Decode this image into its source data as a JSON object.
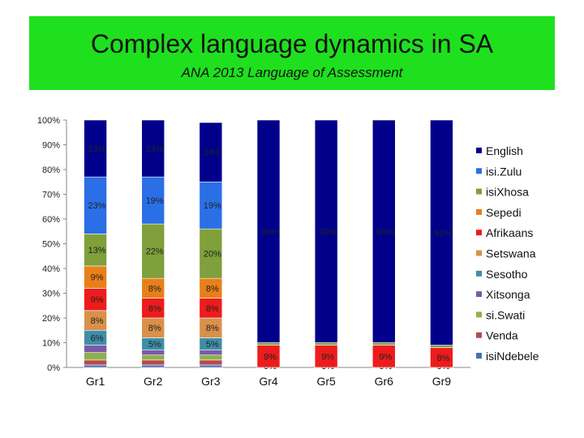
{
  "header": {
    "title": "Complex language dynamics in SA",
    "subtitle": "ANA 2013 Language of Assessment"
  },
  "chart_data": {
    "type": "bar",
    "stacked": true,
    "title": "Complex language dynamics in SA",
    "subtitle": "ANA 2013 Language of Assessment",
    "xlabel": "",
    "ylabel": "",
    "ylim": [
      0,
      100
    ],
    "yticks": [
      "0%",
      "10%",
      "20%",
      "30%",
      "40%",
      "50%",
      "60%",
      "70%",
      "80%",
      "90%",
      "100%"
    ],
    "categories": [
      "Gr1",
      "Gr2",
      "Gr3",
      "Gr4",
      "Gr5",
      "Gr6",
      "Gr9"
    ],
    "legend_position": "right",
    "series": [
      {
        "name": "isiNdebele",
        "color": "#4a6fb5",
        "values": [
          1,
          1,
          1,
          0,
          0,
          0,
          0
        ],
        "labels": [
          "",
          "",
          "",
          "0%",
          "0%",
          "0%",
          "0%"
        ]
      },
      {
        "name": "Venda",
        "color": "#b84a4a",
        "values": [
          2,
          2,
          2,
          0,
          0,
          0,
          0
        ],
        "labels": [
          "",
          "",
          "",
          "",
          "",
          "",
          ""
        ]
      },
      {
        "name": "si.Swati",
        "color": "#8fb04a",
        "values": [
          3,
          2,
          2,
          0,
          0,
          0,
          0
        ],
        "labels": [
          "",
          "",
          "",
          "",
          "",
          "",
          ""
        ]
      },
      {
        "name": "Xitsonga",
        "color": "#7a5aa8",
        "values": [
          3,
          2,
          2,
          0,
          0,
          0,
          0
        ],
        "labels": [
          "",
          "",
          "",
          "",
          "",
          "",
          ""
        ]
      },
      {
        "name": "Sesotho",
        "color": "#3f8ea8",
        "values": [
          6,
          5,
          5,
          0,
          0,
          0,
          0
        ],
        "labels": [
          "6%",
          "5%",
          "5%",
          "0%",
          "0%",
          "0%",
          "0%"
        ]
      },
      {
        "name": "Setswana",
        "color": "#d9914a",
        "values": [
          8,
          8,
          8,
          0,
          0,
          0,
          0
        ],
        "labels": [
          "8%",
          "8%",
          "8%",
          "",
          "",
          "",
          ""
        ]
      },
      {
        "name": "Afrikaans",
        "color": "#ee1c1c",
        "values": [
          9,
          8,
          8,
          9,
          9,
          9,
          8
        ],
        "labels": [
          "9%",
          "8%",
          "8%",
          "9%",
          "9%",
          "9%",
          "8%"
        ]
      },
      {
        "name": "Sepedi",
        "color": "#e8801a",
        "values": [
          9,
          8,
          8,
          0,
          0,
          0,
          0
        ],
        "labels": [
          "9%",
          "8%",
          "8%",
          "",
          "",
          "",
          ""
        ]
      },
      {
        "name": "isiXhosa",
        "color": "#7fa03a",
        "values": [
          13,
          22,
          20,
          1,
          1,
          1,
          1
        ],
        "labels": [
          "13%",
          "22%",
          "20%",
          "",
          "",
          "",
          ""
        ]
      },
      {
        "name": "isi.Zulu",
        "color": "#2b6fe6",
        "values": [
          23,
          19,
          19,
          0,
          0,
          0,
          0
        ],
        "labels": [
          "23%",
          "19%",
          "19%",
          "",
          "",
          "",
          ""
        ]
      },
      {
        "name": "English",
        "color": "#00008b",
        "values": [
          23,
          23,
          24,
          90,
          90,
          90,
          91
        ],
        "labels": [
          "23%",
          "23%",
          "24%",
          "90%",
          "90%",
          "90%",
          "91%"
        ]
      }
    ],
    "legend_order": [
      "English",
      "isi.Zulu",
      "isiXhosa",
      "Sepedi",
      "Afrikaans",
      "Setswana",
      "Sesotho",
      "Xitsonga",
      "si.Swati",
      "Venda",
      "isiNdebele"
    ]
  }
}
